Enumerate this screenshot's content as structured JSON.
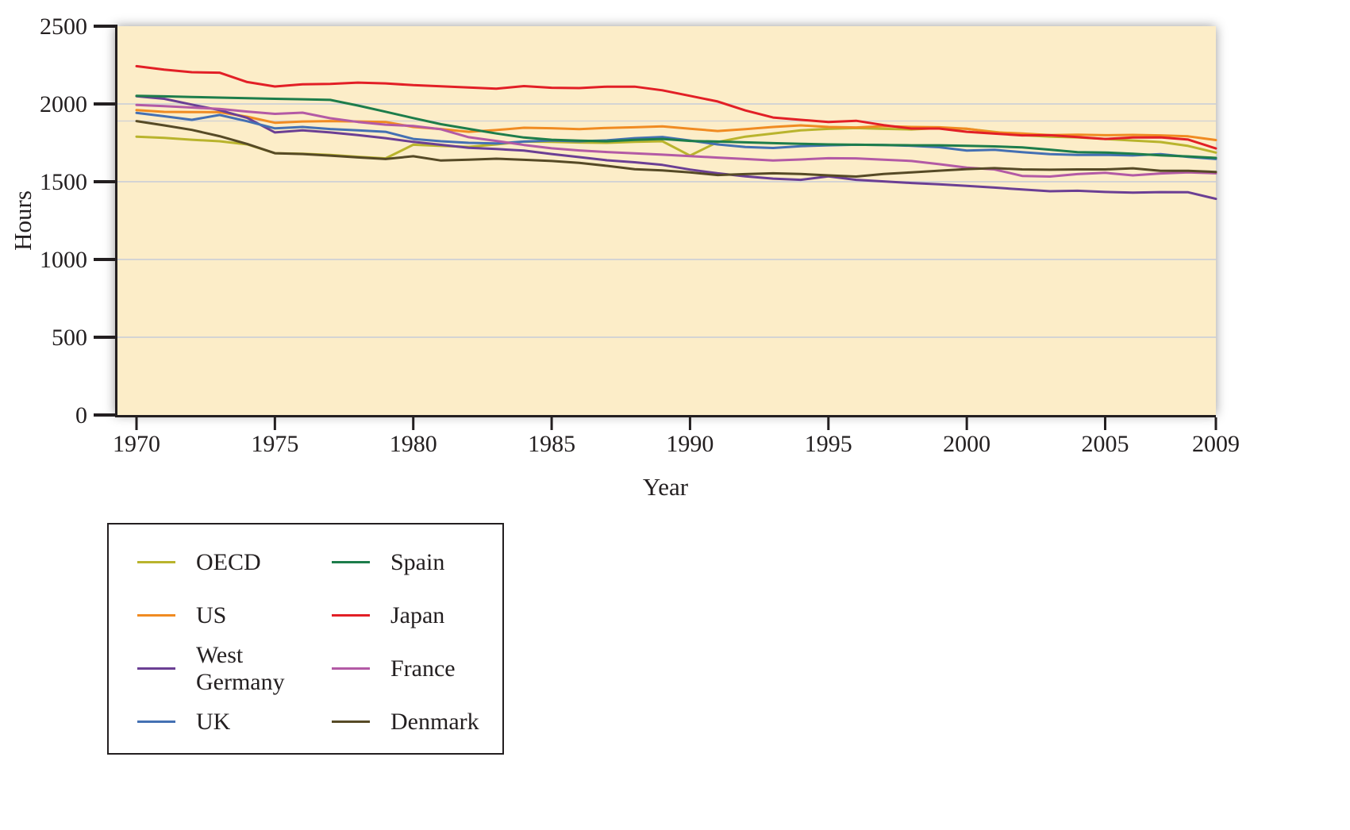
{
  "chart_style": {
    "plot_bg": "#fcedc8",
    "grid_color": "#d4d4d4",
    "axis_color": "#231f20",
    "text_color": "#231f20"
  },
  "chart_data": {
    "type": "line",
    "title": "",
    "xlabel": "Year",
    "ylabel": "Hours",
    "ylim": [
      0,
      2500
    ],
    "xticks": [
      1970,
      1975,
      1980,
      1985,
      1990,
      1995,
      2000,
      2005,
      2009
    ],
    "yticks": [
      0,
      500,
      1000,
      1500,
      2000,
      2500
    ],
    "gridlines": [
      500,
      1000,
      1500,
      2000
    ],
    "reference_gridline": 1890,
    "legend_position": "bottom-left",
    "grid": "on",
    "x": [
      1970,
      1971,
      1972,
      1973,
      1974,
      1975,
      1976,
      1977,
      1978,
      1979,
      1980,
      1981,
      1982,
      1983,
      1984,
      1985,
      1986,
      1987,
      1988,
      1989,
      1990,
      1991,
      1992,
      1993,
      1994,
      1995,
      1996,
      1997,
      1998,
      1999,
      2000,
      2001,
      2002,
      2003,
      2004,
      2005,
      2006,
      2007,
      2008,
      2009
    ],
    "series": [
      {
        "name": "OECD",
        "color": "#b9b42d",
        "values": [
          1790,
          1782,
          1770,
          1760,
          1740,
          1683,
          1680,
          1672,
          1660,
          1650,
          1738,
          1730,
          1724,
          1740,
          1758,
          1756,
          1752,
          1750,
          1756,
          1760,
          1668,
          1755,
          1790,
          1810,
          1830,
          1840,
          1845,
          1840,
          1836,
          1845,
          1840,
          1820,
          1800,
          1790,
          1785,
          1775,
          1765,
          1755,
          1730,
          1687
        ]
      },
      {
        "name": "US",
        "color": "#f08b22",
        "values": [
          1960,
          1949,
          1948,
          1947,
          1918,
          1879,
          1887,
          1890,
          1887,
          1884,
          1852,
          1839,
          1821,
          1832,
          1847,
          1844,
          1838,
          1846,
          1850,
          1856,
          1841,
          1826,
          1838,
          1852,
          1862,
          1852,
          1849,
          1857,
          1852,
          1850,
          1841,
          1818,
          1810,
          1800,
          1802,
          1799,
          1801,
          1798,
          1792,
          1768
        ]
      },
      {
        "name": "West Germany",
        "color": "#6b3f94",
        "values": [
          2050,
          2033,
          1996,
          1960,
          1910,
          1817,
          1830,
          1817,
          1800,
          1780,
          1756,
          1737,
          1718,
          1710,
          1700,
          1678,
          1658,
          1638,
          1625,
          1608,
          1578,
          1554,
          1534,
          1520,
          1512,
          1534,
          1512,
          1502,
          1492,
          1483,
          1473,
          1462,
          1450,
          1439,
          1442,
          1434,
          1430,
          1433,
          1432,
          1390
        ]
      },
      {
        "name": "UK",
        "color": "#4470b3",
        "values": [
          1943,
          1921,
          1898,
          1929,
          1889,
          1843,
          1852,
          1839,
          1830,
          1821,
          1775,
          1760,
          1750,
          1746,
          1758,
          1765,
          1760,
          1766,
          1780,
          1788,
          1765,
          1740,
          1723,
          1717,
          1728,
          1734,
          1738,
          1736,
          1731,
          1722,
          1700,
          1705,
          1690,
          1677,
          1672,
          1673,
          1669,
          1677,
          1659,
          1646
        ]
      },
      {
        "name": "Spain",
        "color": "#1d7d4b",
        "values": [
          2052,
          2049,
          2045,
          2041,
          2037,
          2033,
          2030,
          2026,
          1990,
          1950,
          1909,
          1870,
          1840,
          1810,
          1784,
          1770,
          1764,
          1760,
          1769,
          1775,
          1762,
          1758,
          1753,
          1748,
          1744,
          1740,
          1738,
          1736,
          1734,
          1734,
          1731,
          1727,
          1721,
          1706,
          1690,
          1688,
          1680,
          1670,
          1663,
          1653
        ]
      },
      {
        "name": "Japan",
        "color": "#e21f26",
        "values": [
          2243,
          2221,
          2204,
          2201,
          2141,
          2112,
          2126,
          2129,
          2137,
          2132,
          2121,
          2114,
          2106,
          2098,
          2115,
          2104,
          2102,
          2111,
          2111,
          2088,
          2052,
          2016,
          1958,
          1913,
          1898,
          1884,
          1892,
          1864,
          1842,
          1842,
          1821,
          1809,
          1798,
          1799,
          1787,
          1775,
          1784,
          1785,
          1771,
          1714
        ]
      },
      {
        "name": "France",
        "color": "#b35aa5",
        "values": [
          1994,
          1986,
          1977,
          1968,
          1951,
          1936,
          1944,
          1908,
          1884,
          1867,
          1858,
          1837,
          1786,
          1762,
          1736,
          1715,
          1701,
          1691,
          1682,
          1674,
          1665,
          1655,
          1646,
          1636,
          1643,
          1651,
          1650,
          1642,
          1633,
          1613,
          1591,
          1579,
          1537,
          1533,
          1549,
          1557,
          1541,
          1553,
          1560,
          1554
        ]
      },
      {
        "name": "Denmark",
        "color": "#564a26",
        "values": [
          1890,
          1862,
          1833,
          1793,
          1743,
          1683,
          1678,
          1668,
          1656,
          1646,
          1664,
          1636,
          1642,
          1648,
          1641,
          1633,
          1621,
          1602,
          1580,
          1573,
          1560,
          1543,
          1549,
          1554,
          1550,
          1541,
          1533,
          1550,
          1560,
          1571,
          1581,
          1587,
          1579,
          1577,
          1579,
          1579,
          1586,
          1570,
          1570,
          1563
        ]
      }
    ]
  },
  "legend": {
    "items": [
      {
        "label": "OECD"
      },
      {
        "label": "Spain"
      },
      {
        "label": "US"
      },
      {
        "label": "Japan"
      },
      {
        "label": "West Germany"
      },
      {
        "label": "France"
      },
      {
        "label": "UK"
      },
      {
        "label": "Denmark"
      }
    ]
  }
}
